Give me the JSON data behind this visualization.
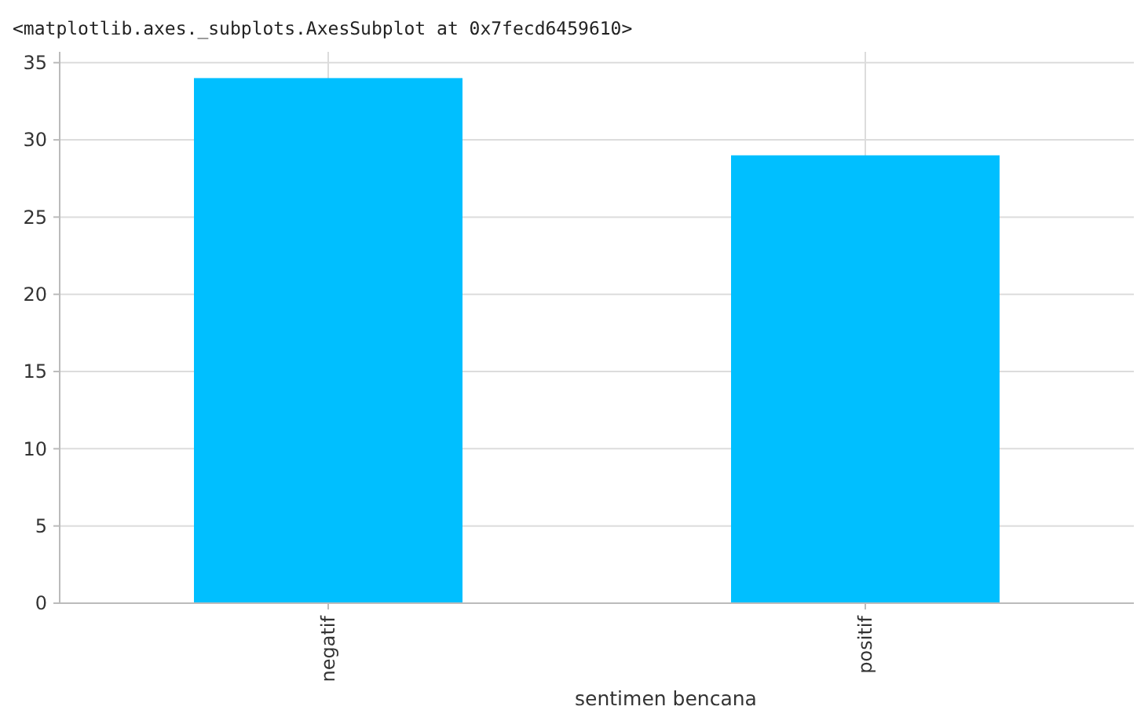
{
  "chart_data": {
    "type": "bar",
    "annotations": [
      "<matplotlib.axes._subplots.AxesSubplot at 0x7fecd6459610>"
    ],
    "xlabel": "sentimen bencana",
    "categories": [
      "negatif",
      "positif"
    ],
    "values": [
      34,
      29
    ],
    "color": "#00bfff",
    "ylim": [
      0,
      35.7
    ],
    "yticks": [
      0,
      5,
      10,
      15,
      20,
      25,
      30,
      35
    ],
    "grid": true
  }
}
